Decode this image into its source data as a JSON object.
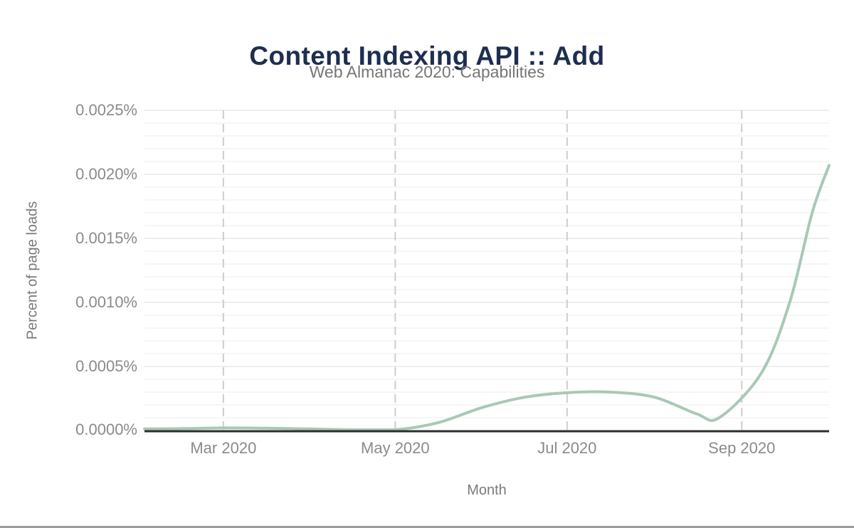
{
  "chart_data": {
    "type": "line",
    "title": "Content Indexing API :: Add",
    "subtitle": "Web Almanac 2020: Capabilities",
    "xlabel": "Month",
    "ylabel": "Percent of page loads",
    "ylim": [
      0,
      0.0025
    ],
    "y_major_step": 0.0005,
    "y_minor_step": 0.0001,
    "grid": "on",
    "legend": "none",
    "x_domain": [
      "2020-02-02",
      "2020-10-02"
    ],
    "x_ticks": [
      {
        "label": "Mar 2020",
        "date": "2020-03-01"
      },
      {
        "label": "May 2020",
        "date": "2020-05-01"
      },
      {
        "label": "Jul 2020",
        "date": "2020-07-01"
      },
      {
        "label": "Sep 2020",
        "date": "2020-09-01"
      }
    ],
    "y_ticks": [
      {
        "label": "0.0000%",
        "value": 0.0
      },
      {
        "label": "0.0005%",
        "value": 0.0005
      },
      {
        "label": "0.0010%",
        "value": 0.001
      },
      {
        "label": "0.0015%",
        "value": 0.0015
      },
      {
        "label": "0.0020%",
        "value": 0.002
      },
      {
        "label": "0.0025%",
        "value": 0.0025
      }
    ],
    "series": [
      {
        "name": "Content Indexing API :: Add",
        "points": [
          {
            "date": "2020-02-02",
            "value": 1.2e-05
          },
          {
            "date": "2020-02-16",
            "value": 1.5e-05
          },
          {
            "date": "2020-03-01",
            "value": 2e-05
          },
          {
            "date": "2020-03-16",
            "value": 1.8e-05
          },
          {
            "date": "2020-04-01",
            "value": 1.2e-05
          },
          {
            "date": "2020-04-16",
            "value": 5e-06
          },
          {
            "date": "2020-05-01",
            "value": 1e-06
          },
          {
            "date": "2020-05-16",
            "value": 6e-05
          },
          {
            "date": "2020-06-01",
            "value": 0.00018
          },
          {
            "date": "2020-06-16",
            "value": 0.00026
          },
          {
            "date": "2020-07-01",
            "value": 0.000295
          },
          {
            "date": "2020-07-16",
            "value": 0.0003
          },
          {
            "date": "2020-08-01",
            "value": 0.00026
          },
          {
            "date": "2020-08-16",
            "value": 0.00013
          },
          {
            "date": "2020-08-24",
            "value": 0.0001
          },
          {
            "date": "2020-09-08",
            "value": 0.00045
          },
          {
            "date": "2020-09-18",
            "value": 0.001
          },
          {
            "date": "2020-09-26",
            "value": 0.0017
          },
          {
            "date": "2020-10-02",
            "value": 0.00207
          }
        ]
      }
    ],
    "colors": {
      "series_line": "#a8c9b5",
      "title_text": "#1e2e4f",
      "subtitle_text": "#757575",
      "tick_text": "#8a8a8a",
      "axis_line": "#2e2e2e",
      "minor_gridline": "#f1f1f1",
      "major_gridline": "#e8e8e8",
      "dashed_gridline": "#cdcdcd",
      "bottom_strip": "#9c9c9c"
    }
  }
}
